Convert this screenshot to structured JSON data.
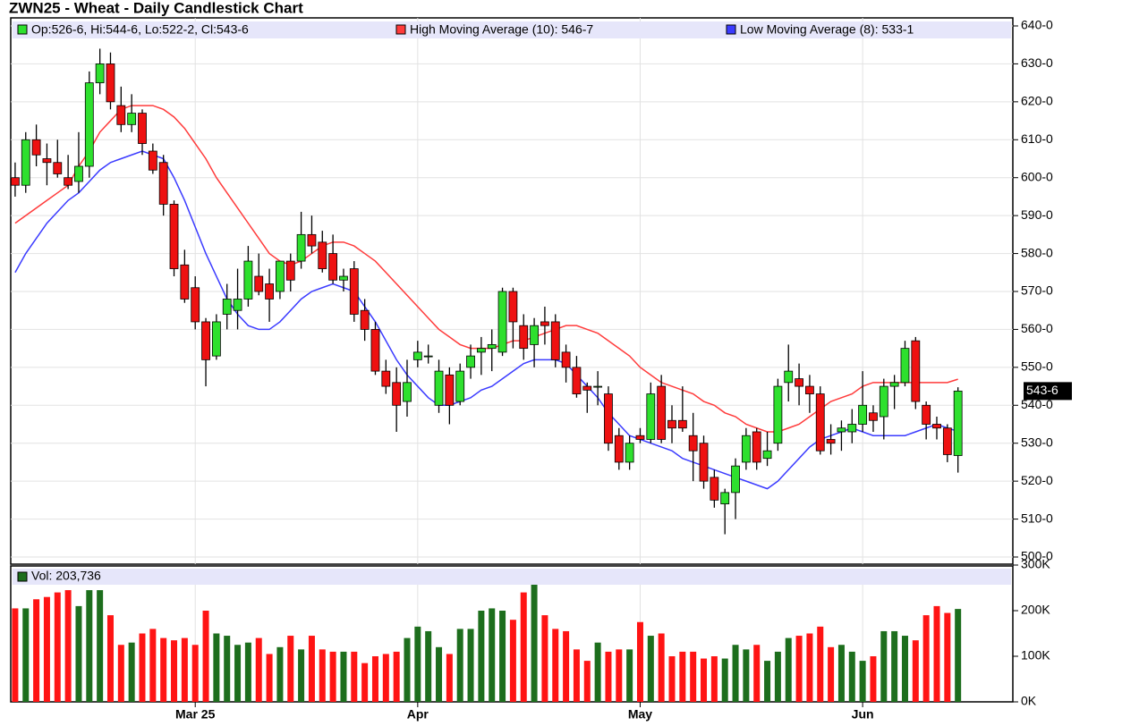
{
  "chart_data": {
    "type": "candlestick",
    "title": "ZWN25 - Wheat - Daily Candlestick Chart",
    "ohlc_label": "Op:526-6, Hi:544-6, Lo:522-2, Cl:543-6",
    "last_label": "543-6",
    "up_color": "#2ee02e",
    "down_color": "#ee1111",
    "categories": [
      null,
      null,
      null,
      null,
      null,
      null,
      null,
      null,
      null,
      null,
      null,
      null,
      null,
      null,
      null,
      null,
      null,
      "Mar 25",
      null,
      null,
      null,
      null,
      null,
      null,
      null,
      null,
      null,
      null,
      null,
      null,
      null,
      null,
      null,
      null,
      null,
      null,
      null,
      null,
      "Apr",
      null,
      null,
      null,
      null,
      null,
      null,
      null,
      null,
      null,
      null,
      null,
      null,
      null,
      null,
      null,
      null,
      null,
      null,
      null,
      null,
      "May",
      null,
      null,
      null,
      null,
      null,
      null,
      null,
      null,
      null,
      null,
      null,
      null,
      null,
      null,
      null,
      null,
      null,
      null,
      null,
      null,
      "Jun",
      null,
      null,
      null,
      null,
      null,
      null,
      null,
      null,
      null
    ],
    "open": [
      600,
      598,
      610,
      605,
      604,
      600,
      599,
      603,
      625,
      630,
      619,
      614,
      617,
      607,
      604,
      593,
      577,
      571,
      562,
      553,
      564,
      565,
      568,
      574,
      572,
      570,
      578,
      578,
      585,
      583,
      580,
      573,
      576,
      565,
      560,
      549,
      546,
      541,
      552,
      553,
      540,
      548,
      541,
      550,
      554,
      555,
      554,
      570,
      561,
      556,
      562,
      562,
      554,
      550,
      545,
      545,
      543,
      532,
      525,
      532,
      531,
      545,
      536,
      536,
      532,
      530,
      521,
      514,
      517,
      525,
      533,
      526,
      530,
      546,
      547,
      545,
      543,
      531,
      533,
      533,
      535,
      538,
      537,
      545,
      546,
      557,
      540,
      535,
      534,
      526.75
    ],
    "high": [
      604,
      612,
      614,
      609,
      610,
      606,
      612,
      628,
      634,
      633,
      624,
      622,
      618,
      609,
      606,
      594,
      581,
      574,
      563,
      564,
      572,
      576,
      582,
      580,
      576,
      578,
      580,
      591,
      590,
      586,
      585,
      576,
      578,
      568,
      562,
      552,
      550,
      552,
      557,
      556,
      552,
      550,
      551,
      556,
      558,
      560,
      571,
      571,
      564,
      563,
      566,
      564,
      556,
      553,
      546,
      549,
      545,
      534,
      532,
      534,
      546,
      548,
      540,
      545,
      538,
      532,
      523,
      518,
      526,
      534,
      534,
      533,
      547,
      556,
      551,
      548,
      545,
      535,
      536,
      539,
      549,
      540,
      547,
      548,
      557,
      558,
      541,
      537,
      535,
      544.75
    ],
    "low": [
      595,
      596,
      603,
      598,
      600,
      597,
      596,
      600,
      622,
      618,
      612,
      612,
      606,
      601,
      590,
      574,
      567,
      560,
      545,
      552,
      560,
      560,
      566,
      569,
      562,
      568,
      570,
      576,
      580,
      575,
      572,
      570,
      562,
      557,
      548,
      543,
      533,
      537,
      550,
      551,
      538,
      535,
      540,
      547,
      548,
      549,
      553,
      555,
      552,
      550,
      556,
      550,
      546,
      542,
      538,
      540,
      528,
      523,
      523,
      530,
      530,
      530,
      530,
      533,
      520,
      518,
      513,
      506,
      510,
      523,
      523,
      524,
      528,
      541,
      540,
      538,
      527,
      527,
      528,
      530,
      533,
      533,
      531,
      539,
      545,
      539,
      531,
      531,
      525,
      522.25
    ],
    "close": [
      598,
      610,
      606,
      604,
      601,
      598,
      603,
      625,
      630,
      620,
      614,
      617,
      609,
      602,
      593,
      576,
      568,
      562,
      552,
      562,
      568,
      568,
      578,
      570,
      568,
      578,
      573,
      585,
      582,
      576,
      573,
      574,
      564,
      560,
      549,
      545,
      540,
      546,
      554,
      553,
      549,
      540,
      549,
      553,
      555,
      556,
      570,
      562,
      555,
      561,
      561,
      552,
      550,
      543,
      544,
      545,
      530,
      525,
      530,
      531,
      543,
      531,
      534,
      534,
      528,
      520,
      515,
      517,
      524,
      532,
      525,
      528,
      545,
      549,
      545,
      543,
      528,
      530,
      534,
      535,
      540,
      536,
      545,
      546,
      555,
      541,
      535,
      534,
      527,
      543.75
    ],
    "series": [
      {
        "name": "High Moving Average (10): 546-7",
        "color": "#ff3b3b",
        "values": [
          588,
          590,
          592,
          594,
          596,
          598,
          603,
          607,
          612,
          615,
          618,
          619,
          619,
          619,
          618,
          616,
          613,
          609,
          605,
          600,
          596,
          592,
          588,
          584,
          580,
          578,
          577,
          578,
          580,
          582,
          583,
          583,
          582,
          580,
          578,
          575,
          572,
          569,
          566,
          563,
          560,
          558,
          556,
          555,
          555,
          555,
          556,
          557,
          557,
          558,
          559,
          560,
          561,
          561,
          560,
          559,
          557,
          555,
          553,
          550,
          548,
          546,
          545,
          544,
          543,
          541,
          540,
          538,
          537,
          535,
          534,
          533,
          533,
          534,
          535,
          537,
          539,
          541,
          542,
          543,
          545,
          546,
          546,
          546,
          546,
          546,
          546,
          546,
          546,
          546.875
        ]
      },
      {
        "name": "Low Moving Average (8): 533-1",
        "color": "#3b3bff",
        "values": [
          575,
          580,
          584,
          588,
          591,
          594,
          596,
          599,
          602,
          604,
          605,
          606,
          607,
          606,
          605,
          600,
          594,
          587,
          580,
          574,
          568,
          564,
          561,
          560,
          560,
          562,
          565,
          568,
          570,
          571,
          572,
          571,
          570,
          566,
          562,
          557,
          552,
          548,
          545,
          542,
          540,
          540,
          541,
          542,
          544,
          545,
          547,
          549,
          551,
          552,
          552,
          552,
          551,
          548,
          545,
          542,
          538,
          535,
          532,
          531,
          530,
          529,
          528,
          526,
          525,
          524,
          523,
          522,
          521,
          520,
          519,
          518,
          520,
          523,
          526,
          529,
          531,
          532,
          533,
          534,
          533,
          532,
          532,
          532,
          532,
          533,
          534,
          535,
          534,
          533.125
        ]
      }
    ],
    "ylim": [
      500,
      640
    ],
    "yticks": [
      {
        "value": 500,
        "label": "500-0"
      },
      {
        "value": 510,
        "label": "510-0"
      },
      {
        "value": 520,
        "label": "520-0"
      },
      {
        "value": 530,
        "label": "530-0"
      },
      {
        "value": 540,
        "label": "540-0"
      },
      {
        "value": 550,
        "label": "550-0"
      },
      {
        "value": 560,
        "label": "560-0"
      },
      {
        "value": 570,
        "label": "570-0"
      },
      {
        "value": 580,
        "label": "580-0"
      },
      {
        "value": 590,
        "label": "590-0"
      },
      {
        "value": 600,
        "label": "600-0"
      },
      {
        "value": 610,
        "label": "610-0"
      },
      {
        "value": 620,
        "label": "620-0"
      },
      {
        "value": 630,
        "label": "630-0"
      },
      {
        "value": 640,
        "label": "640-0"
      }
    ],
    "grid": true,
    "volume": {
      "label": "Vol: 203,736",
      "up_color": "#1d6e1d",
      "down_color": "#ff1414",
      "values": [
        205,
        205,
        225,
        230,
        240,
        245,
        210,
        245,
        245,
        190,
        125,
        130,
        150,
        160,
        140,
        135,
        140,
        125,
        200,
        150,
        145,
        125,
        130,
        140,
        105,
        120,
        145,
        115,
        145,
        115,
        110,
        110,
        110,
        85,
        100,
        105,
        110,
        140,
        165,
        155,
        120,
        105,
        160,
        160,
        200,
        205,
        200,
        180,
        240,
        260,
        190,
        160,
        155,
        115,
        90,
        130,
        110,
        115,
        115,
        175,
        145,
        150,
        100,
        110,
        110,
        95,
        100,
        95,
        125,
        115,
        125,
        90,
        110,
        140,
        145,
        150,
        165,
        120,
        125,
        110,
        90,
        100,
        155,
        155,
        145,
        135,
        190,
        210,
        195,
        203.736
      ],
      "ylim": [
        0,
        300
      ],
      "yticks": [
        {
          "value": 0,
          "label": "0K"
        },
        {
          "value": 100,
          "label": "100K"
        },
        {
          "value": 200,
          "label": "200K"
        },
        {
          "value": 300,
          "label": "300K"
        }
      ]
    }
  }
}
